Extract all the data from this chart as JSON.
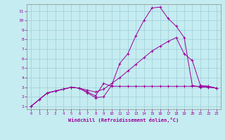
{
  "xlabel": "Windchill (Refroidissement éolien,°C)",
  "bg_color": "#c5ecf0",
  "grid_color": "#9dcdd8",
  "line_color": "#990099",
  "xlim": [
    -0.5,
    23.5
  ],
  "ylim": [
    0.7,
    11.7
  ],
  "xticks": [
    0,
    1,
    2,
    3,
    4,
    5,
    6,
    7,
    8,
    9,
    10,
    11,
    12,
    13,
    14,
    15,
    16,
    17,
    18,
    19,
    20,
    21,
    22,
    23
  ],
  "yticks": [
    1,
    2,
    3,
    4,
    5,
    6,
    7,
    8,
    9,
    10,
    11
  ],
  "line1_x": [
    0,
    1,
    2,
    3,
    4,
    5,
    6,
    7,
    8,
    9,
    10,
    11,
    12,
    13,
    14,
    15,
    16,
    17,
    18,
    19,
    20,
    21,
    22,
    23
  ],
  "line1_y": [
    1.0,
    1.7,
    2.4,
    2.6,
    2.8,
    3.0,
    2.9,
    2.4,
    1.9,
    2.0,
    3.2,
    5.5,
    6.5,
    8.4,
    10.0,
    11.3,
    11.4,
    10.2,
    9.4,
    8.2,
    3.2,
    3.0,
    3.0,
    2.9
  ],
  "line2_x": [
    0,
    1,
    2,
    3,
    4,
    5,
    6,
    7,
    8,
    9,
    10,
    11,
    12,
    13,
    14,
    15,
    16,
    17,
    18,
    19,
    20,
    21,
    22,
    23
  ],
  "line2_y": [
    1.0,
    1.7,
    2.4,
    2.6,
    2.8,
    3.0,
    2.9,
    2.7,
    2.5,
    2.8,
    3.4,
    4.0,
    4.7,
    5.4,
    6.1,
    6.8,
    7.3,
    7.8,
    8.2,
    6.5,
    5.8,
    3.2,
    3.1,
    2.9
  ],
  "line3_x": [
    0,
    1,
    2,
    3,
    4,
    5,
    6,
    7,
    8,
    9,
    10,
    11,
    12,
    13,
    14,
    15,
    16,
    17,
    18,
    19,
    20,
    21,
    22,
    23
  ],
  "line3_y": [
    1.0,
    1.7,
    2.4,
    2.6,
    2.8,
    3.0,
    2.9,
    2.5,
    2.1,
    3.4,
    3.1,
    3.1,
    3.1,
    3.1,
    3.1,
    3.1,
    3.1,
    3.1,
    3.1,
    3.1,
    3.1,
    3.1,
    3.1,
    2.9
  ],
  "figsize": [
    3.2,
    2.0
  ],
  "dpi": 100
}
